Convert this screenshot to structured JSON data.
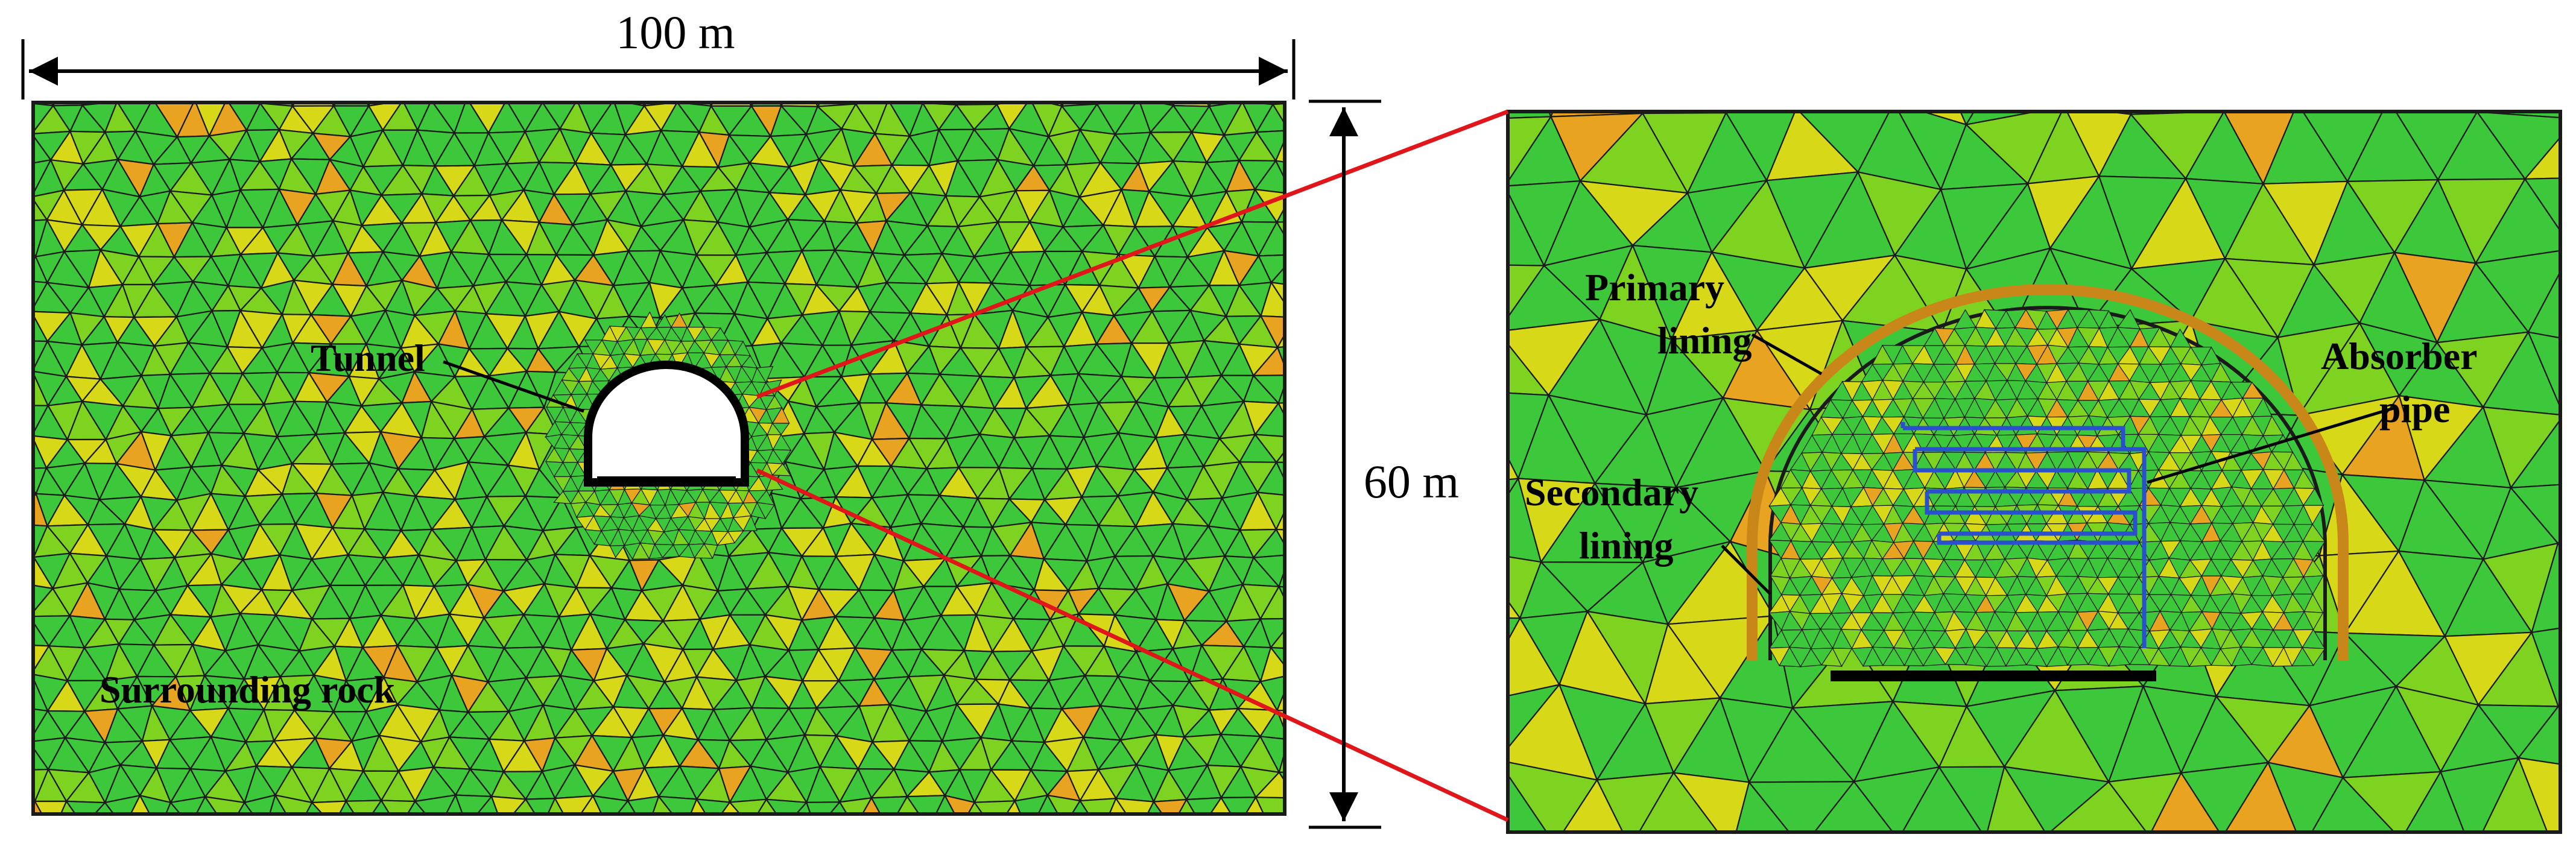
{
  "dimensions": {
    "width_label": "100 m",
    "height_label": "60 m"
  },
  "labels": {
    "tunnel": "Tunnel",
    "surrounding_rock": "Surrounding rock",
    "primary_lining_line1": "Primary",
    "primary_lining_line2": "lining",
    "secondary_lining_line1": "Secondary",
    "secondary_lining_line2": "lining",
    "absorber_pipe_line1": "Absorber",
    "absorber_pipe_line2": "pipe"
  },
  "colors": {
    "mesh_green": "#3cc83a",
    "mesh_light_green": "#7ed321",
    "mesh_yellow": "#d6d818",
    "mesh_orange": "#e8a320",
    "mesh_edge": "#1a1a1a",
    "zoom_line": "#e0161b",
    "absorber_pipe": "#2a4fcf"
  }
}
